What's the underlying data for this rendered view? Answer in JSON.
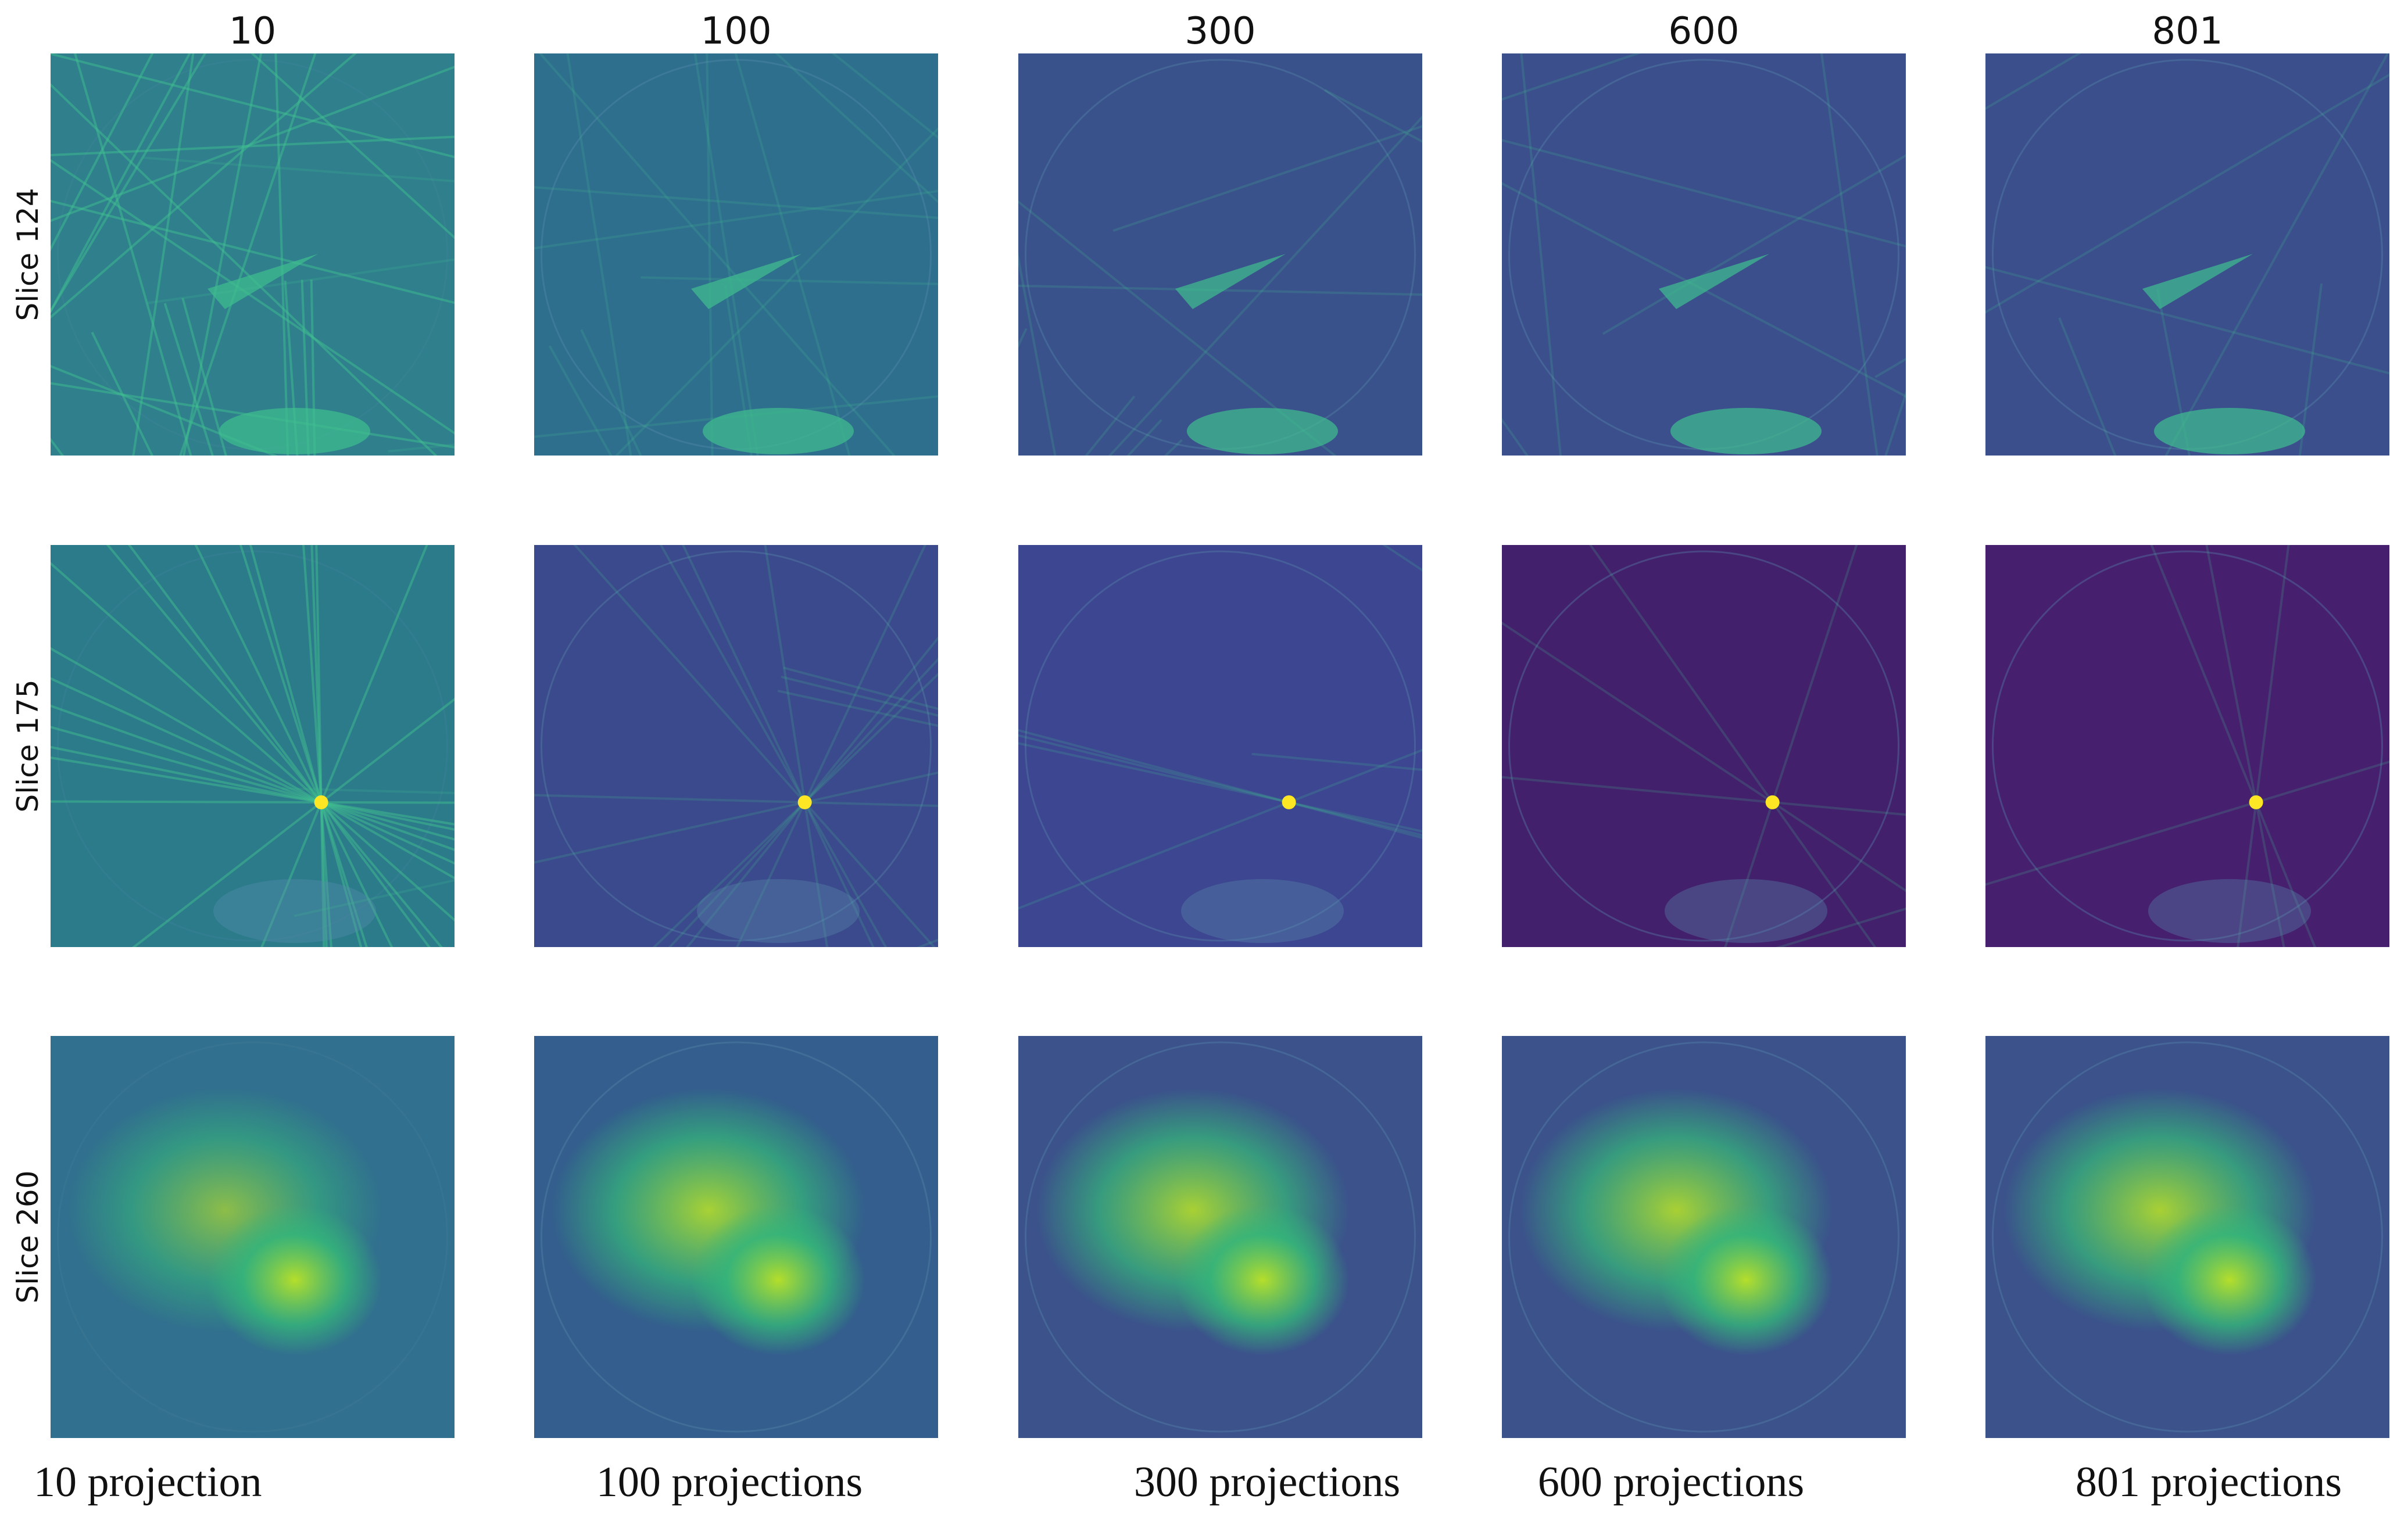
{
  "column_headers": [
    "10",
    "100",
    "300",
    "600",
    "801"
  ],
  "row_labels": [
    "Slice 124",
    "Slice 175",
    "Slice 260"
  ],
  "captions": [
    "10 projection",
    "100 projections",
    "300 projections",
    "600 projections",
    "801 projections"
  ]
}
